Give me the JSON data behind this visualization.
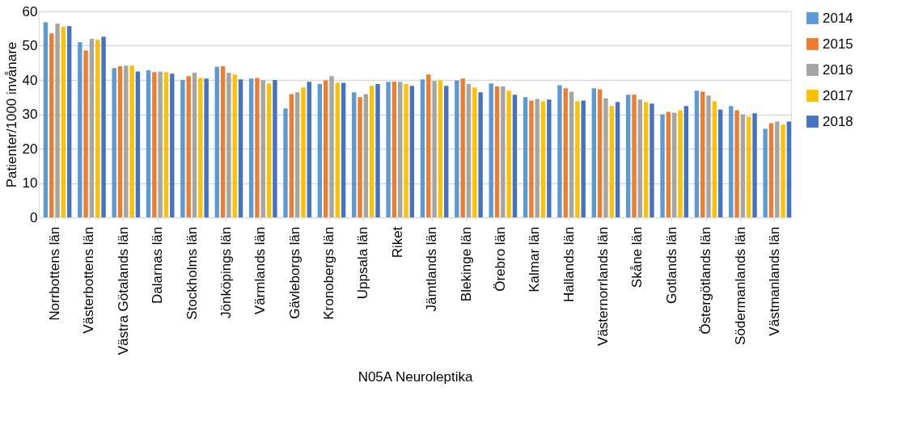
{
  "chart_data": {
    "type": "bar",
    "xlabel": "N05A Neuroleptika",
    "ylabel": "Patienter/1000 invånare",
    "categories": [
      "Norrbottens län",
      "Västerbottens län",
      "Västra Götalands län",
      "Dalarnas län",
      "Stockholms län",
      "Jönköpings län",
      "Värmlands län",
      "Gävleborgs län",
      "Kronobergs län",
      "Uppsala län",
      "Riket",
      "Jämtlands län",
      "Blekinge län",
      "Örebro län",
      "Kalmar län",
      "Hallands län",
      "Västernorrlands län",
      "Skåne län",
      "Gotlands län",
      "Östergötlands län",
      "Södermanlands län",
      "Västmanlands län"
    ],
    "series": [
      {
        "name": "2014",
        "color": "#5b9bd5",
        "values": [
          56.8,
          51.0,
          43.5,
          42.8,
          40.0,
          43.8,
          40.4,
          31.7,
          38.8,
          36.4,
          39.5,
          40.2,
          39.9,
          39.0,
          35.0,
          38.5,
          37.6,
          35.7,
          30.0,
          36.9,
          32.4,
          25.8
        ]
      },
      {
        "name": "2015",
        "color": "#ed7d31",
        "values": [
          53.6,
          48.6,
          44.0,
          42.3,
          41.1,
          44.0,
          40.6,
          35.9,
          39.9,
          35.0,
          39.5,
          41.6,
          40.4,
          38.1,
          34.0,
          37.6,
          37.3,
          35.7,
          30.7,
          36.6,
          31.2,
          27.4
        ]
      },
      {
        "name": "2016",
        "color": "#a5a5a5",
        "values": [
          56.4,
          52.0,
          44.2,
          42.5,
          42.1,
          42.1,
          40.0,
          36.4,
          41.1,
          35.9,
          39.5,
          39.7,
          38.8,
          38.1,
          34.5,
          36.6,
          34.7,
          34.3,
          30.5,
          35.5,
          30.0,
          27.9
        ]
      },
      {
        "name": "2017",
        "color": "#ffc000",
        "values": [
          55.5,
          51.7,
          44.2,
          42.3,
          40.6,
          41.6,
          39.0,
          37.8,
          39.2,
          38.3,
          38.8,
          39.9,
          37.8,
          36.9,
          33.8,
          33.8,
          32.4,
          33.6,
          31.2,
          33.8,
          29.3,
          27.0
        ]
      },
      {
        "name": "2018",
        "color": "#4472c4",
        "values": [
          55.7,
          52.6,
          42.5,
          41.8,
          40.4,
          40.2,
          40.0,
          39.5,
          39.2,
          38.8,
          38.3,
          38.3,
          36.4,
          35.7,
          34.3,
          34.0,
          33.6,
          33.1,
          32.4,
          31.4,
          30.3,
          27.9
        ]
      }
    ],
    "ylim": [
      0,
      60
    ],
    "yticks": [
      0,
      10,
      20,
      30,
      40,
      50,
      60
    ],
    "grid": "y",
    "legend": "right"
  }
}
